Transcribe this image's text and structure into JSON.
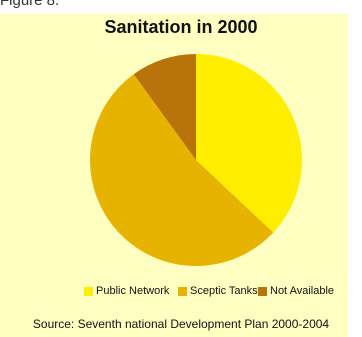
{
  "figure_label": "Figure 8.",
  "source": "Source: Seventh national Development Plan 2000-2004",
  "colors": {
    "background": "#ffffc2"
  },
  "chart_data": {
    "type": "pie",
    "title": "Sanitation in 2000",
    "start_angle_deg": 0,
    "direction": "clockwise",
    "legend_position": "bottom",
    "slices": [
      {
        "label": "Public Network",
        "value": 37,
        "color": "#ffee00"
      },
      {
        "label": "Sceptic Tanks",
        "value": 53,
        "color": "#e6b400"
      },
      {
        "label": "Not Available",
        "value": 10,
        "color": "#b8740a"
      }
    ]
  }
}
